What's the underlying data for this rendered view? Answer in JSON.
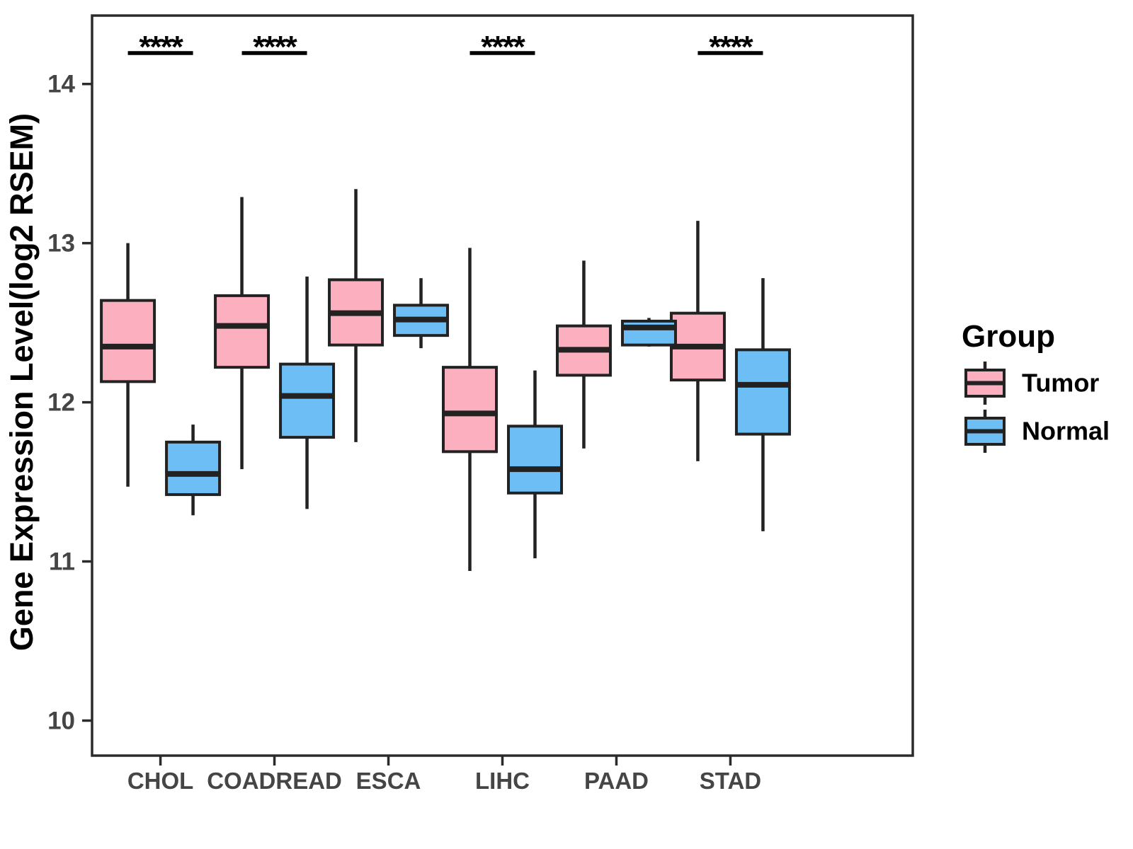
{
  "chart_data": {
    "type": "boxplot",
    "title": "",
    "xlabel": "",
    "ylabel": "Gene Expression Level(log2 RSEM)",
    "ylim": [
      9.78,
      14.43
    ],
    "yticks": [
      10,
      11,
      12,
      13,
      14
    ],
    "grid": false,
    "legend_position": "right",
    "legend_title": "Group",
    "legend_items": [
      {
        "label": "Tumor",
        "color": "#FBAFBF"
      },
      {
        "label": "Normal",
        "color": "#6DBEF5"
      }
    ],
    "categories": [
      "CHOL",
      "COADREAD",
      "ESCA",
      "LIHC",
      "PAAD",
      "STAD"
    ],
    "groups": [
      "Tumor",
      "Normal"
    ],
    "colors": {
      "Tumor": "#FBAFBF",
      "Normal": "#6DBEF5"
    },
    "significance": [
      {
        "category": "CHOL",
        "label": "****"
      },
      {
        "category": "COADREAD",
        "label": "****"
      },
      {
        "category": "LIHC",
        "label": "****"
      },
      {
        "category": "STAD",
        "label": "****"
      }
    ],
    "series": [
      {
        "name": "Tumor",
        "boxes": [
          {
            "category": "CHOL",
            "min": 11.47,
            "q1": 12.13,
            "median": 12.35,
            "q3": 12.64,
            "max": 13.0
          },
          {
            "category": "COADREAD",
            "min": 11.58,
            "q1": 12.22,
            "median": 12.48,
            "q3": 12.67,
            "max": 13.29
          },
          {
            "category": "ESCA",
            "min": 11.75,
            "q1": 12.36,
            "median": 12.56,
            "q3": 12.77,
            "max": 13.34
          },
          {
            "category": "LIHC",
            "min": 10.94,
            "q1": 11.69,
            "median": 11.93,
            "q3": 12.22,
            "max": 12.97
          },
          {
            "category": "PAAD",
            "min": 11.71,
            "q1": 12.17,
            "median": 12.33,
            "q3": 12.48,
            "max": 12.89
          },
          {
            "category": "STAD",
            "min": 11.63,
            "q1": 12.14,
            "median": 12.35,
            "q3": 12.56,
            "max": 13.14
          }
        ]
      },
      {
        "name": "Normal",
        "boxes": [
          {
            "category": "CHOL",
            "min": 11.29,
            "q1": 11.42,
            "median": 11.55,
            "q3": 11.75,
            "max": 11.86
          },
          {
            "category": "COADREAD",
            "min": 11.33,
            "q1": 11.78,
            "median": 12.04,
            "q3": 12.24,
            "max": 12.79
          },
          {
            "category": "ESCA",
            "min": 12.34,
            "q1": 12.42,
            "median": 12.52,
            "q3": 12.61,
            "max": 12.78
          },
          {
            "category": "LIHC",
            "min": 11.02,
            "q1": 11.43,
            "median": 11.58,
            "q3": 11.85,
            "max": 12.2
          },
          {
            "category": "PAAD",
            "min": 12.35,
            "q1": 12.36,
            "median": 12.47,
            "q3": 12.51,
            "max": 12.53
          },
          {
            "category": "STAD",
            "min": 11.19,
            "q1": 11.8,
            "median": 12.11,
            "q3": 12.33,
            "max": 12.78
          }
        ]
      }
    ]
  }
}
